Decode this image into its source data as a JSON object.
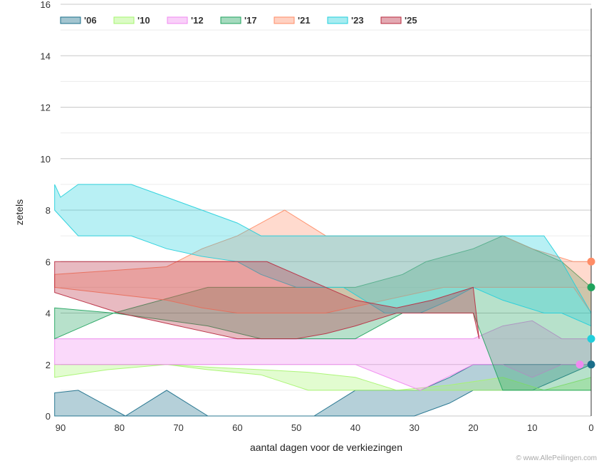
{
  "chart_data": {
    "type": "area",
    "xlabel": "aantal dagen voor de verkiezingen",
    "ylabel": "zetels",
    "xlim": [
      90,
      0
    ],
    "ylim": [
      0,
      16
    ],
    "x_ticks": [
      "90",
      "80",
      "70",
      "60",
      "50",
      "40",
      "30",
      "20",
      "10",
      "0"
    ],
    "y_ticks": [
      "0",
      "2",
      "4",
      "6",
      "8",
      "10",
      "12",
      "14",
      "16"
    ],
    "grid": true,
    "legend_position": "top-left",
    "credit": "© www.AllePeilingen.com",
    "series": [
      {
        "name": "'06",
        "color": "#1a6e8a",
        "final": 2,
        "upper": [
          [
            91,
            0.9
          ],
          [
            87,
            1
          ],
          [
            79,
            0
          ],
          [
            72,
            1
          ],
          [
            65,
            0
          ],
          [
            56,
            0
          ],
          [
            47,
            0
          ],
          [
            40,
            1
          ],
          [
            31,
            1
          ],
          [
            29,
            1
          ],
          [
            24,
            1.5
          ],
          [
            20,
            2
          ],
          [
            15,
            2
          ],
          [
            10,
            2
          ],
          [
            0,
            2
          ]
        ],
        "lower": [
          [
            91,
            0
          ],
          [
            40,
            0
          ],
          [
            30,
            0
          ],
          [
            24,
            0.5
          ],
          [
            20,
            1
          ],
          [
            10,
            1
          ],
          [
            0,
            2
          ]
        ]
      },
      {
        "name": "'10",
        "color": "#a6f56e",
        "final": null,
        "upper": [
          [
            91,
            2
          ],
          [
            82,
            2
          ],
          [
            72,
            2
          ],
          [
            65,
            1.9
          ],
          [
            56,
            1.8
          ],
          [
            48,
            1.7
          ],
          [
            40,
            1.5
          ],
          [
            33,
            1
          ],
          [
            24,
            1.2
          ],
          [
            15,
            1.5
          ],
          [
            8,
            1
          ],
          [
            0,
            1.5
          ]
        ],
        "lower": [
          [
            91,
            1.5
          ],
          [
            82,
            1.8
          ],
          [
            72,
            2
          ],
          [
            65,
            1.8
          ],
          [
            56,
            1.6
          ],
          [
            48,
            1
          ],
          [
            40,
            1
          ],
          [
            33,
            1
          ],
          [
            24,
            1
          ],
          [
            15,
            1
          ],
          [
            8,
            1
          ],
          [
            0,
            1
          ]
        ]
      },
      {
        "name": "'12",
        "color": "#f08af0",
        "final": 2,
        "upper": [
          [
            91,
            3
          ],
          [
            82,
            3
          ],
          [
            72,
            3
          ],
          [
            56,
            3
          ],
          [
            48,
            3
          ],
          [
            40,
            3
          ],
          [
            29,
            3
          ],
          [
            20,
            3
          ],
          [
            15,
            3.5
          ],
          [
            10,
            3.7
          ],
          [
            5,
            3
          ],
          [
            0,
            3
          ]
        ],
        "lower": [
          [
            91,
            2
          ],
          [
            82,
            2
          ],
          [
            72,
            2
          ],
          [
            56,
            2
          ],
          [
            48,
            2
          ],
          [
            40,
            2
          ],
          [
            29,
            1
          ],
          [
            20,
            2
          ],
          [
            15,
            2
          ],
          [
            10,
            1.5
          ],
          [
            5,
            2
          ],
          [
            0,
            2
          ]
        ]
      },
      {
        "name": "'17",
        "color": "#1fa35d",
        "final": 5,
        "upper": [
          [
            91,
            4.2
          ],
          [
            81,
            4
          ],
          [
            65,
            5
          ],
          [
            56,
            5
          ],
          [
            48,
            5
          ],
          [
            40,
            5
          ],
          [
            32,
            5.5
          ],
          [
            28,
            6
          ],
          [
            20,
            6.5
          ],
          [
            15,
            7
          ],
          [
            10,
            6.5
          ],
          [
            5,
            6
          ],
          [
            0,
            5
          ]
        ],
        "lower": [
          [
            91,
            3
          ],
          [
            81,
            4
          ],
          [
            65,
            3.5
          ],
          [
            56,
            3
          ],
          [
            48,
            3
          ],
          [
            40,
            3
          ],
          [
            32,
            4
          ],
          [
            28,
            4
          ],
          [
            20,
            4
          ],
          [
            15,
            1
          ],
          [
            10,
            1
          ],
          [
            5,
            1
          ],
          [
            0,
            1
          ]
        ]
      },
      {
        "name": "'21",
        "color": "#ff8c66",
        "final": 6,
        "upper": [
          [
            91,
            5.5
          ],
          [
            72,
            5.8
          ],
          [
            66,
            6.5
          ],
          [
            60,
            7
          ],
          [
            52,
            8
          ],
          [
            45,
            7
          ],
          [
            35,
            7
          ],
          [
            25,
            7
          ],
          [
            15,
            7
          ],
          [
            10,
            6.5
          ],
          [
            3,
            6
          ],
          [
            0,
            6
          ]
        ],
        "lower": [
          [
            91,
            5
          ],
          [
            72,
            4.5
          ],
          [
            66,
            4.2
          ],
          [
            60,
            4
          ],
          [
            52,
            4
          ],
          [
            45,
            4
          ],
          [
            35,
            4.5
          ],
          [
            25,
            5
          ],
          [
            15,
            5
          ],
          [
            10,
            5
          ],
          [
            3,
            5
          ],
          [
            0,
            4
          ]
        ]
      },
      {
        "name": "'23",
        "color": "#22cfdc",
        "final": 3,
        "upper": [
          [
            91,
            9
          ],
          [
            90,
            8.5
          ],
          [
            87,
            9
          ],
          [
            83,
            9
          ],
          [
            78,
            9
          ],
          [
            72,
            8.5
          ],
          [
            66,
            8
          ],
          [
            60,
            7.5
          ],
          [
            56,
            7
          ],
          [
            50,
            7
          ],
          [
            42,
            7
          ],
          [
            35,
            7
          ],
          [
            29,
            7
          ],
          [
            24,
            7
          ],
          [
            20,
            7
          ],
          [
            15,
            7
          ],
          [
            8,
            7
          ],
          [
            5,
            6
          ],
          [
            0,
            4
          ]
        ],
        "lower": [
          [
            91,
            8
          ],
          [
            87,
            7
          ],
          [
            78,
            7
          ],
          [
            72,
            6.5
          ],
          [
            66,
            6.2
          ],
          [
            60,
            6
          ],
          [
            56,
            5.5
          ],
          [
            50,
            5
          ],
          [
            42,
            5
          ],
          [
            35,
            4
          ],
          [
            29,
            4
          ],
          [
            24,
            4.5
          ],
          [
            20,
            5
          ],
          [
            15,
            4.5
          ],
          [
            8,
            4
          ],
          [
            5,
            4
          ],
          [
            0,
            3.5
          ]
        ]
      },
      {
        "name": "'25",
        "color": "#b8293e",
        "final": null,
        "upper": [
          [
            91,
            6
          ],
          [
            80,
            6
          ],
          [
            70,
            6
          ],
          [
            60,
            6
          ],
          [
            55,
            6
          ],
          [
            50,
            5.5
          ],
          [
            45,
            5
          ],
          [
            40,
            4.5
          ],
          [
            33,
            4.2
          ],
          [
            27,
            4.5
          ],
          [
            20,
            5
          ],
          [
            19,
            3
          ]
        ],
        "lower": [
          [
            91,
            4.8
          ],
          [
            80,
            4
          ],
          [
            70,
            3.5
          ],
          [
            60,
            3
          ],
          [
            55,
            3
          ],
          [
            50,
            3
          ],
          [
            45,
            3.2
          ],
          [
            40,
            3.5
          ],
          [
            33,
            4
          ],
          [
            27,
            4
          ],
          [
            20,
            4
          ],
          [
            19,
            3
          ]
        ]
      }
    ]
  }
}
